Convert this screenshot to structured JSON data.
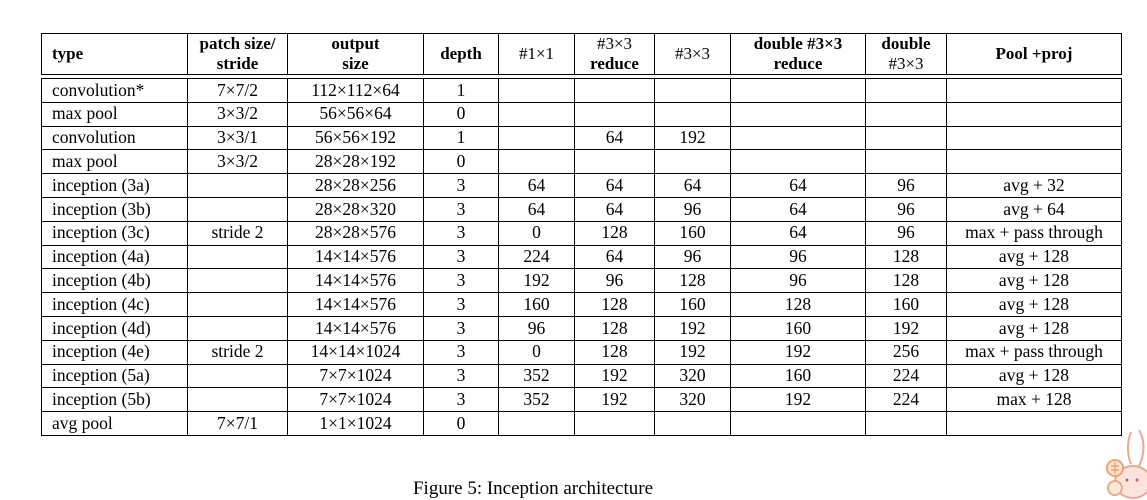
{
  "table": {
    "headers": {
      "type": [
        "type"
      ],
      "patch": [
        "patch size/",
        "stride"
      ],
      "output": [
        "output",
        "size"
      ],
      "depth": [
        "depth"
      ],
      "c1x1": [
        "#1×1"
      ],
      "c3x3reduce": [
        "#3×3",
        "reduce"
      ],
      "c3x3": [
        "#3×3"
      ],
      "d3x3reduce": [
        "double #3×3",
        "reduce"
      ],
      "d3x3": [
        "double",
        "#3×3"
      ],
      "pool": [
        "Pool +proj"
      ]
    },
    "rows": [
      {
        "type": "convolution*",
        "patch": "7×7/2",
        "output": "112×112×64",
        "depth": "1",
        "c1x1": "",
        "c3x3reduce": "",
        "c3x3": "",
        "d3x3reduce": "",
        "d3x3": "",
        "pool": ""
      },
      {
        "type": "max pool",
        "patch": "3×3/2",
        "output": "56×56×64",
        "depth": "0",
        "c1x1": "",
        "c3x3reduce": "",
        "c3x3": "",
        "d3x3reduce": "",
        "d3x3": "",
        "pool": ""
      },
      {
        "type": "convolution",
        "patch": "3×3/1",
        "output": "56×56×192",
        "depth": "1",
        "c1x1": "",
        "c3x3reduce": "64",
        "c3x3": "192",
        "d3x3reduce": "",
        "d3x3": "",
        "pool": ""
      },
      {
        "type": "max pool",
        "patch": "3×3/2",
        "output": "28×28×192",
        "depth": "0",
        "c1x1": "",
        "c3x3reduce": "",
        "c3x3": "",
        "d3x3reduce": "",
        "d3x3": "",
        "pool": ""
      },
      {
        "type": "inception (3a)",
        "patch": "",
        "output": "28×28×256",
        "depth": "3",
        "c1x1": "64",
        "c3x3reduce": "64",
        "c3x3": "64",
        "d3x3reduce": "64",
        "d3x3": "96",
        "pool": "avg + 32"
      },
      {
        "type": "inception (3b)",
        "patch": "",
        "output": "28×28×320",
        "depth": "3",
        "c1x1": "64",
        "c3x3reduce": "64",
        "c3x3": "96",
        "d3x3reduce": "64",
        "d3x3": "96",
        "pool": "avg + 64"
      },
      {
        "type": "inception (3c)",
        "patch": "stride 2",
        "output": "28×28×576",
        "depth": "3",
        "c1x1": "0",
        "c3x3reduce": "128",
        "c3x3": "160",
        "d3x3reduce": "64",
        "d3x3": "96",
        "pool": "max + pass through"
      },
      {
        "type": "inception (4a)",
        "patch": "",
        "output": "14×14×576",
        "depth": "3",
        "c1x1": "224",
        "c3x3reduce": "64",
        "c3x3": "96",
        "d3x3reduce": "96",
        "d3x3": "128",
        "pool": "avg + 128"
      },
      {
        "type": "inception (4b)",
        "patch": "",
        "output": "14×14×576",
        "depth": "3",
        "c1x1": "192",
        "c3x3reduce": "96",
        "c3x3": "128",
        "d3x3reduce": "96",
        "d3x3": "128",
        "pool": "avg + 128"
      },
      {
        "type": "inception (4c)",
        "patch": "",
        "output": "14×14×576",
        "depth": "3",
        "c1x1": "160",
        "c3x3reduce": "128",
        "c3x3": "160",
        "d3x3reduce": "128",
        "d3x3": "160",
        "pool": "avg + 128"
      },
      {
        "type": "inception (4d)",
        "patch": "",
        "output": "14×14×576",
        "depth": "3",
        "c1x1": "96",
        "c3x3reduce": "128",
        "c3x3": "192",
        "d3x3reduce": "160",
        "d3x3": "192",
        "pool": "avg + 128"
      },
      {
        "type": "inception (4e)",
        "patch": "stride 2",
        "output": "14×14×1024",
        "depth": "3",
        "c1x1": "0",
        "c3x3reduce": "128",
        "c3x3": "192",
        "d3x3reduce": "192",
        "d3x3": "256",
        "pool": "max + pass through"
      },
      {
        "type": "inception (5a)",
        "patch": "",
        "output": "7×7×1024",
        "depth": "3",
        "c1x1": "352",
        "c3x3reduce": "192",
        "c3x3": "320",
        "d3x3reduce": "160",
        "d3x3": "224",
        "pool": "avg + 128"
      },
      {
        "type": "inception (5b)",
        "patch": "",
        "output": "7×7×1024",
        "depth": "3",
        "c1x1": "352",
        "c3x3reduce": "192",
        "c3x3": "320",
        "d3x3reduce": "192",
        "d3x3": "224",
        "pool": "max + 128"
      },
      {
        "type": "avg pool",
        "patch": "7×7/1",
        "output": "1×1×1024",
        "depth": "0",
        "c1x1": "",
        "c3x3reduce": "",
        "c3x3": "",
        "d3x3reduce": "",
        "d3x3": "",
        "pool": ""
      }
    ]
  },
  "caption": "Figure 5: Inception architecture",
  "mascot": {
    "icon": "rabbit-mascot-icon",
    "color": "#f3b8a8"
  }
}
